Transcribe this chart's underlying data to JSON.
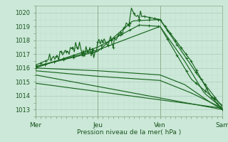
{
  "bg_color": "#cce8d8",
  "grid_color_major": "#aaccbb",
  "grid_color_minor": "#bbddcc",
  "line_color": "#1a6620",
  "xlabel": "Pression niveau de la mer( hPa )",
  "x_ticks_labels": [
    "Mer",
    "Jeu",
    "Ven",
    "Sam"
  ],
  "x_ticks_pos": [
    0,
    96,
    192,
    288
  ],
  "ylim": [
    1012.5,
    1020.5
  ],
  "yticks": [
    1013,
    1014,
    1015,
    1016,
    1017,
    1018,
    1019,
    1020
  ],
  "xlim": [
    0,
    288
  ]
}
